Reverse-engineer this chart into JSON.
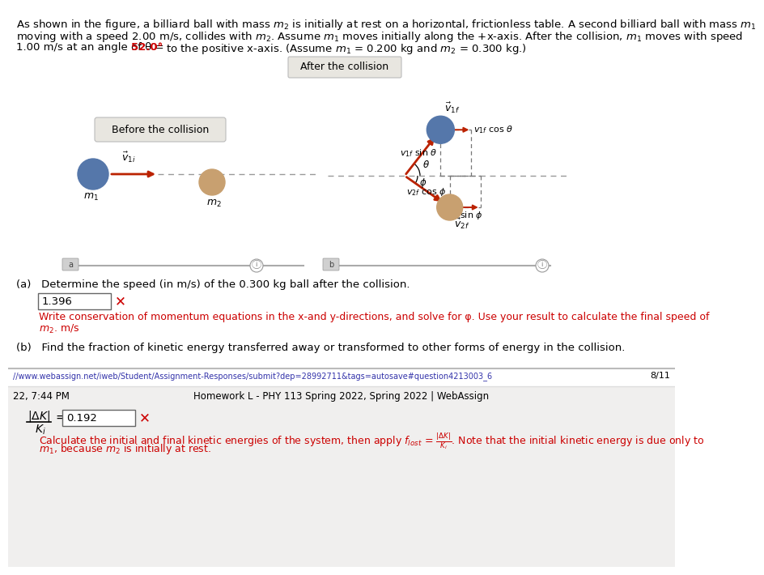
{
  "bg_color": "#ffffff",
  "red_color": "#cc0000",
  "blue_ball_color": "#5577aa",
  "tan_ball_color": "#c8a070",
  "arrow_color": "#bb2200",
  "dashed_color": "#999999",
  "box_edge": "#bbbbbb",
  "box_face": "#e8e6e0",
  "separator_color": "#cccccc",
  "footer_bg": "#f0efee",
  "answer_box_edge": "#666666",
  "text_color": "#000000",
  "url_color": "#3333aa",
  "after_label": "After the collision",
  "before_label": "Before the collision",
  "part_a": "(a)   Determine the speed (in m/s) of the 0.300 kg ball after the collision.",
  "part_a_answer": "1.396",
  "part_a_hint1": "Write conservation of momentum equations in the x-and y-directions, and solve for φ. Use your result to calculate the final speed of",
  "part_a_hint2": "$m_2$. m/s",
  "part_b": "(b)   Find the fraction of kinetic energy transferred away or transformed to other forms of energy in the collision.",
  "url_text": "//www.webassign.net/iweb/Student/Assignment-Responses/submit?dep=28992711&tags=autosave#question4213003_6",
  "page_num": "8/11",
  "footer_time": "22, 7:44 PM",
  "footer_title": "Homework L - PHY 113 Spring 2022, Spring 2022 | WebAssign",
  "part_b_answer": "0.192",
  "part_b_hint1": "Calculate the initial and final kinetic energies of the system, then apply $f_{lost}$ = $\\frac{|\\Delta K|}{K_i}$. Note that the initial kinetic energy is due only to",
  "part_b_hint2": "$m_1$, because $m_2$ is initially at rest.",
  "line1": "As shown in the figure, a billiard ball with mass $m_2$ is initially at rest on a horizontal, frictionless table. A second billiard ball with mass $m_1$",
  "line2": "moving with a speed 2.00 m/s, collides with $m_2$. Assume $m_1$ moves initially along the +x-axis. After the collision, $m_1$ moves with speed",
  "line3a": "1.00 m/s at an angle of θ = ",
  "line3b": "52.0°",
  "line3c": " to the positive x-axis. (Assume $m_1$ = 0.200 kg and $m_2$ = 0.300 kg.)",
  "theta_deg": 52.0,
  "phi_deg": 35.0
}
